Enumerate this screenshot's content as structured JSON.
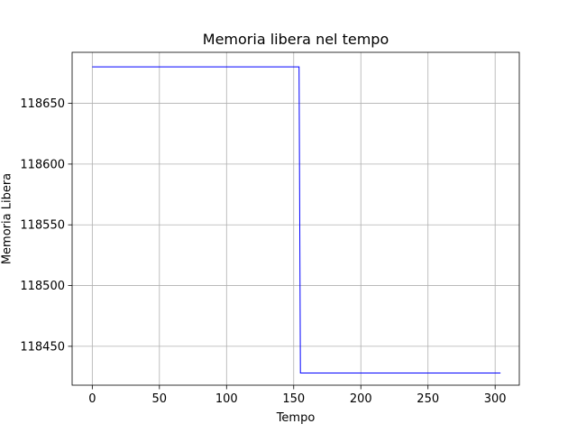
{
  "chart_data": {
    "type": "line",
    "title": "Memoria libera nel tempo",
    "xlabel": "Tempo",
    "ylabel": "Memoria Libera",
    "xlim": [
      -15,
      318
    ],
    "ylim": [
      118418,
      118692
    ],
    "xticks": [
      0,
      50,
      100,
      150,
      200,
      250,
      300
    ],
    "yticks": [
      118450,
      118500,
      118550,
      118600,
      118650
    ],
    "xtick_labels": [
      "0",
      "50",
      "100",
      "150",
      "200",
      "250",
      "300"
    ],
    "ytick_labels": [
      "118450",
      "118500",
      "118550",
      "118600",
      "118650"
    ],
    "grid": true,
    "series": [
      {
        "color": "#0000ff",
        "x": [
          0,
          154,
          155,
          304
        ],
        "y": [
          118680,
          118680,
          118428,
          118428
        ]
      }
    ]
  }
}
